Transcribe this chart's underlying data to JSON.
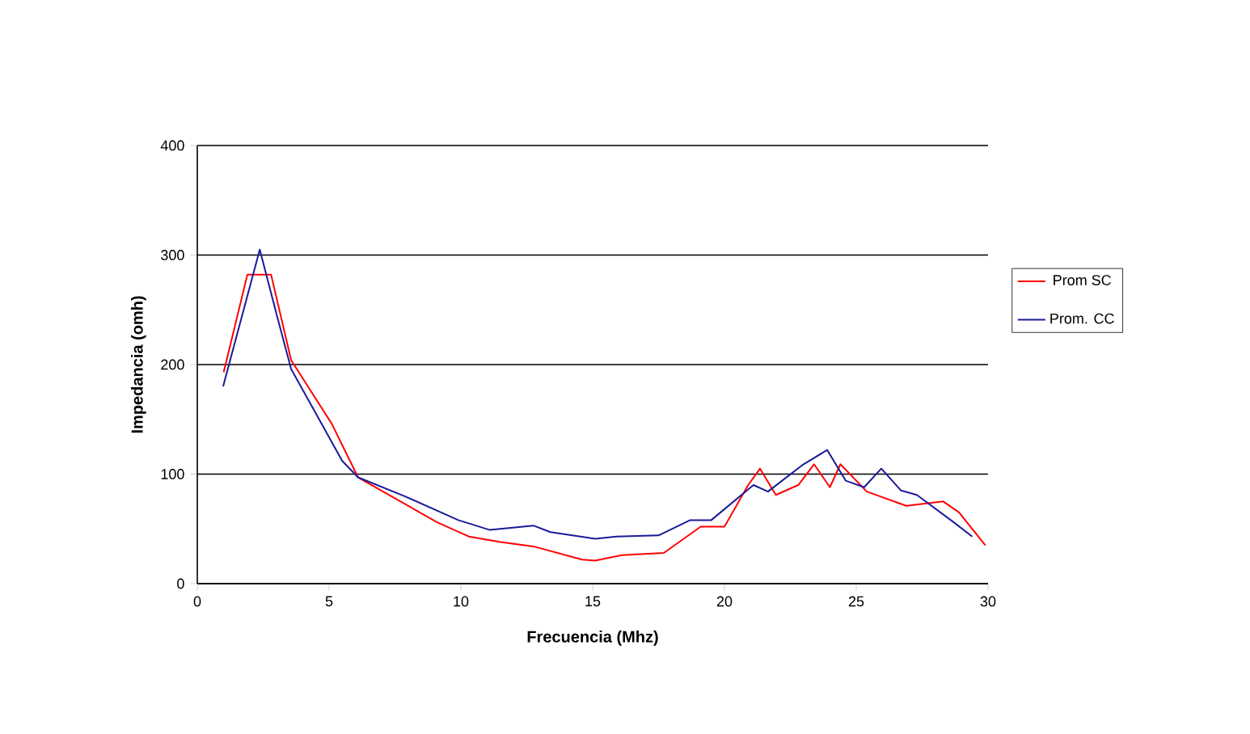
{
  "chart_data": {
    "type": "line",
    "xlabel": "Frecuencia (Mhz)",
    "ylabel": "Impedancia (omh)",
    "xlim": [
      0,
      30
    ],
    "xticks": [
      0,
      5,
      10,
      15,
      20,
      25,
      30
    ],
    "ylim": [
      0,
      400
    ],
    "yticks": [
      0,
      100,
      200,
      300,
      400
    ],
    "grid": "y",
    "legend": "right",
    "marker": "none",
    "line_style": "solid",
    "series": [
      {
        "name": "Prom SC",
        "color": "#ff0000",
        "x": [
          1,
          1.9,
          2.8,
          3.56,
          5.1,
          6.1,
          9.1,
          10.3,
          11.5,
          12.75,
          14.6,
          15.1,
          16.1,
          17.7,
          19.1,
          20.0,
          20.9,
          21.35,
          21.95,
          22.8,
          23.4,
          24.0,
          24.4,
          25.4,
          26.9,
          28.3,
          28.9,
          29.9
        ],
        "values": [
          193,
          282,
          282,
          204,
          146,
          97,
          56,
          43,
          38,
          34,
          22,
          21,
          26,
          28,
          52,
          52,
          90,
          105,
          81,
          90,
          109,
          88,
          109,
          84,
          71,
          75,
          65,
          35
        ]
      },
      {
        "name": "Prom. CC",
        "color": "#1a1a99",
        "x": [
          0.98,
          2.37,
          3.05,
          3.56,
          5.5,
          6.1,
          7.85,
          9.9,
          11.1,
          12.75,
          13.4,
          15.1,
          15.9,
          17.5,
          18.7,
          19.5,
          21.1,
          21.65,
          23.0,
          23.9,
          24.6,
          25.3,
          25.95,
          26.7,
          27.3,
          28.7,
          29.4
        ],
        "values": [
          180,
          305,
          242,
          196,
          112,
          97,
          80,
          58,
          49,
          53,
          47,
          41,
          43,
          44,
          58,
          58,
          90,
          84,
          109,
          122,
          94,
          88,
          105,
          85,
          81,
          56,
          43
        ]
      }
    ]
  }
}
